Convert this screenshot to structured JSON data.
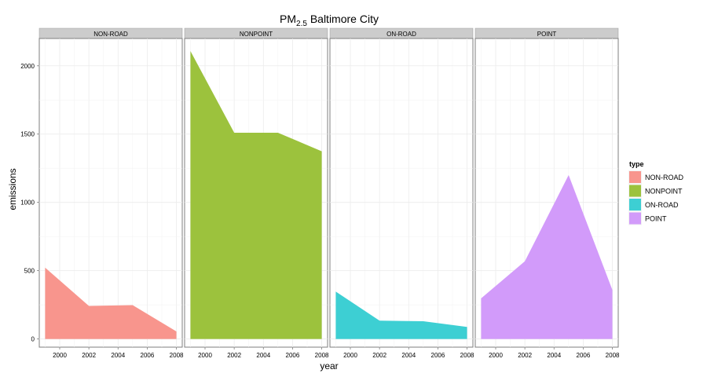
{
  "chart_data": {
    "type": "area",
    "title": "PM",
    "title_subscript": "2.5",
    "title_suffix": " Baltimore City",
    "xlabel": "year",
    "ylabel": "emissions",
    "x": [
      1999,
      2002,
      2005,
      2008
    ],
    "xlim": [
      1998.6,
      2008.4
    ],
    "xticks": [
      2000,
      2002,
      2004,
      2006,
      2008
    ],
    "ylim": [
      -60,
      2200
    ],
    "yticks": [
      0,
      500,
      1000,
      1500,
      2000
    ],
    "grid": true,
    "legend_title": "type",
    "legend_position": "right",
    "series": [
      {
        "name": "NON-ROAD",
        "color": "#f8958d",
        "values": [
          522,
          242,
          248,
          55
        ]
      },
      {
        "name": "NONPOINT",
        "color": "#9cc23d",
        "values": [
          2108,
          1510,
          1510,
          1374
        ]
      },
      {
        "name": "ON-ROAD",
        "color": "#3dcfd3",
        "values": [
          347,
          134,
          130,
          88
        ]
      },
      {
        "name": "POINT",
        "color": "#d29bfa",
        "values": [
          297,
          569,
          1200,
          358
        ]
      }
    ]
  }
}
